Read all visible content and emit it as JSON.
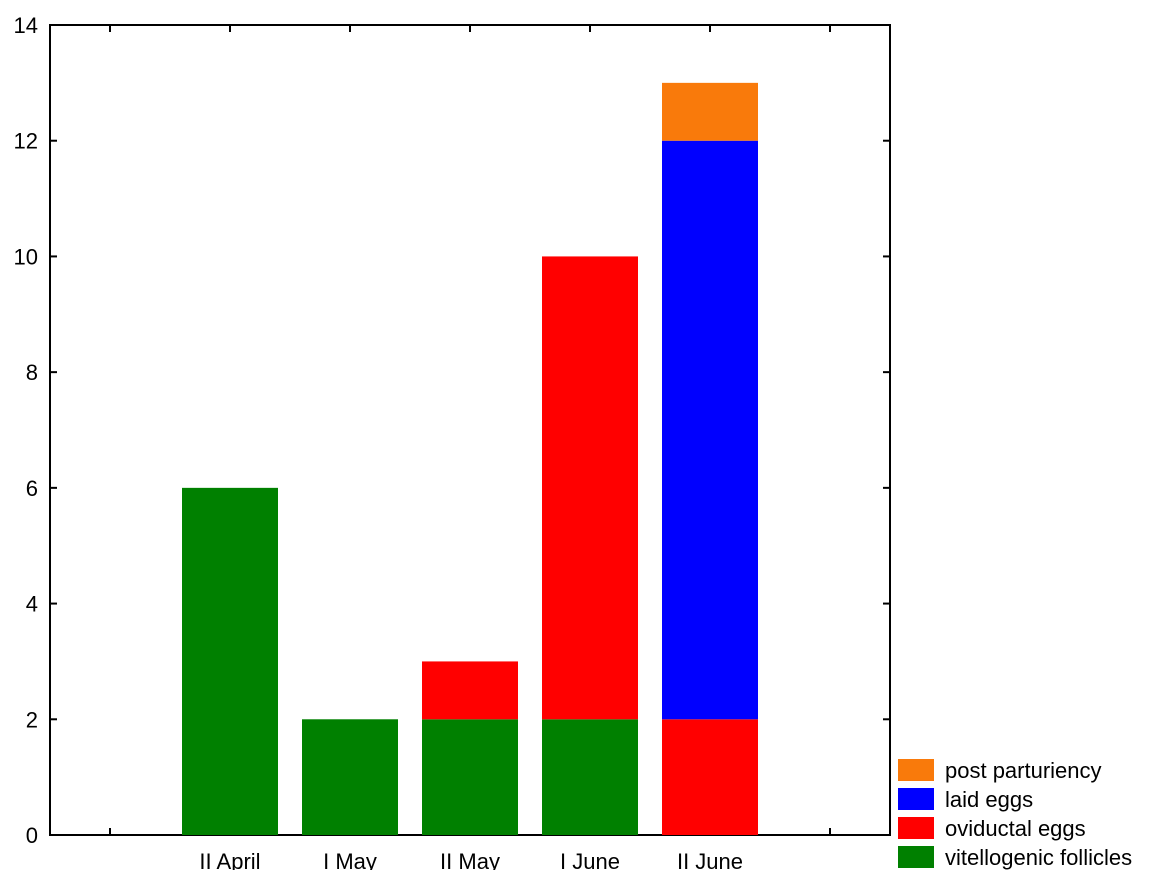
{
  "chart_data": {
    "type": "bar",
    "stacked": true,
    "categories": [
      "II April",
      "I May",
      "II May",
      "I June",
      "II June"
    ],
    "series": [
      {
        "name": "vitellogenic follicles",
        "color": "#008000",
        "values": [
          6,
          2,
          2,
          2,
          0
        ]
      },
      {
        "name": "oviductal eggs",
        "color": "#ff0000",
        "values": [
          0,
          0,
          1,
          8,
          2
        ]
      },
      {
        "name": "laid eggs",
        "color": "#0000ff",
        "values": [
          0,
          0,
          0,
          0,
          10
        ]
      },
      {
        "name": "post parturiency",
        "color": "#f97a0b",
        "values": [
          0,
          0,
          0,
          0,
          1
        ]
      }
    ],
    "ylim": [
      0,
      14
    ],
    "yticks": [
      "0",
      "2",
      "4",
      "6",
      "8",
      "10",
      "12",
      "14"
    ],
    "xlabel": "",
    "ylabel": "",
    "title": "",
    "grid": false,
    "legend_position": "bottom-right",
    "legend_order": [
      "post parturiency",
      "laid eggs",
      "oviductal eggs",
      "vitellogenic follicles"
    ]
  }
}
